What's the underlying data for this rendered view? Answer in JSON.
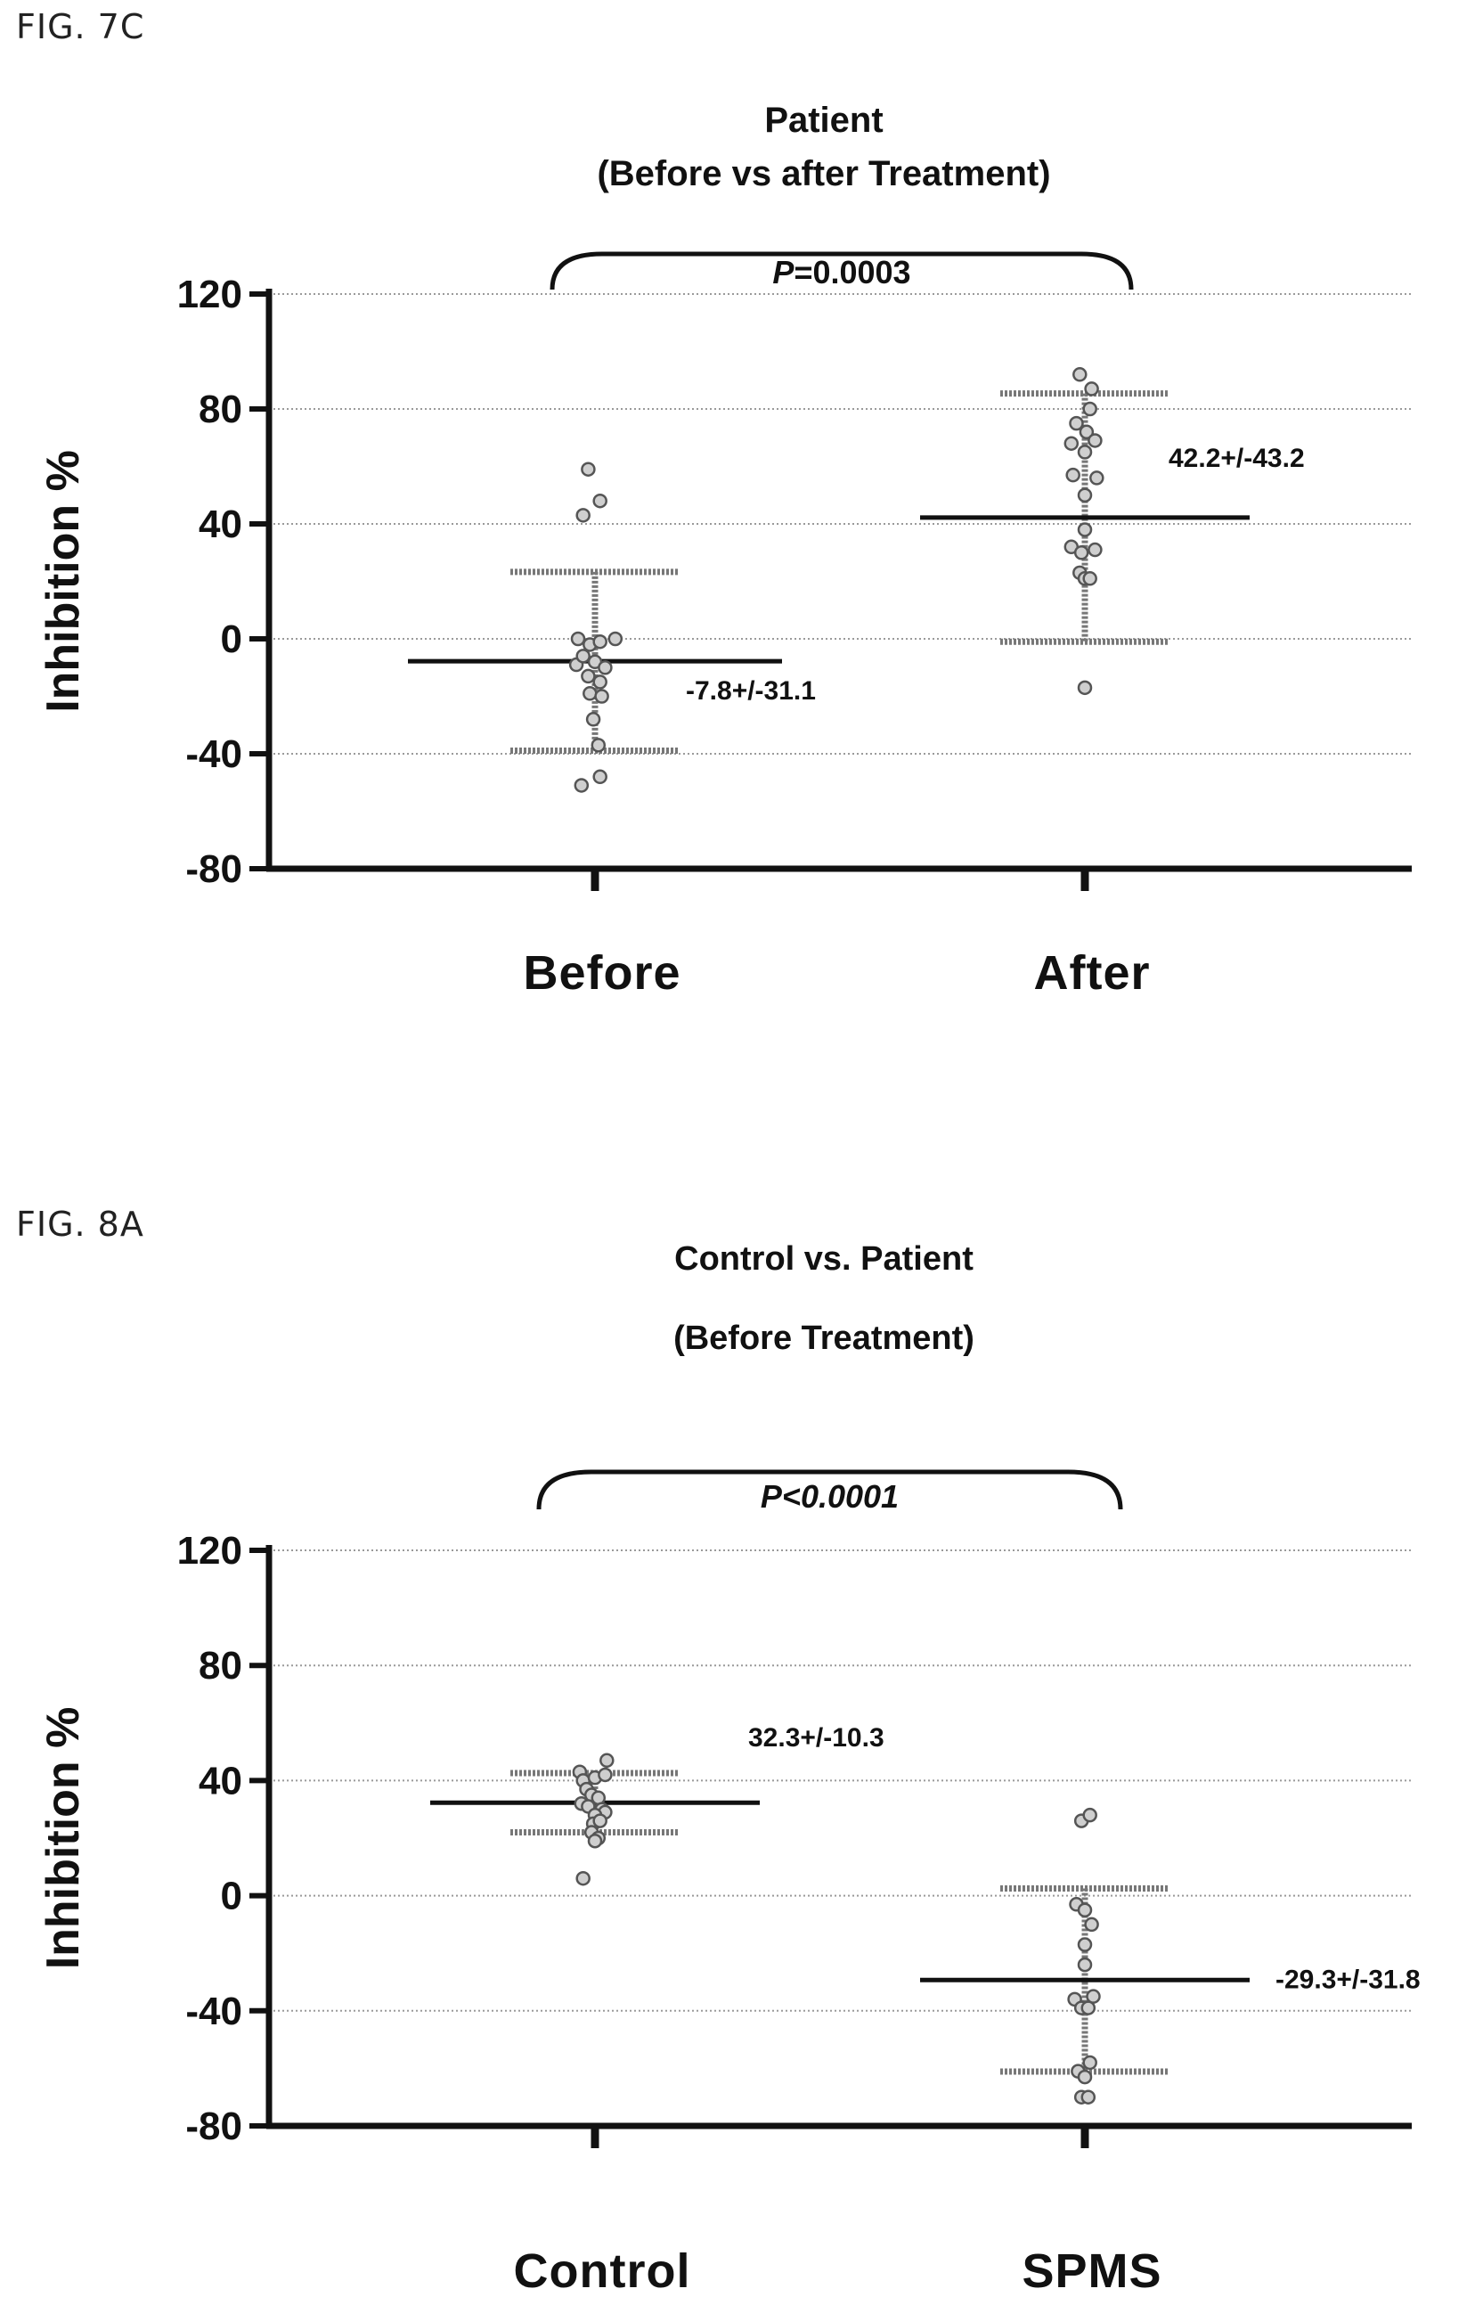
{
  "figures": [
    {
      "label": "FIG. 7C"
    },
    {
      "label": "FIG. 8A"
    }
  ],
  "chart_data": [
    {
      "type": "scatter",
      "title": "Patient",
      "subtitle": "(Before vs after Treatment)",
      "ylabel": "Inhibition %",
      "ylim": [
        -80,
        120
      ],
      "yticks": [
        "120",
        "80",
        "40",
        "0",
        "-40",
        "-80"
      ],
      "grid": true,
      "categories": [
        "Before",
        "After"
      ],
      "pvalue_prefix": "P",
      "pvalue_rest": "=0.0003",
      "groups": [
        {
          "name": "Before",
          "mean": -7.8,
          "sd": 31.1,
          "annotation": "-7.8+/-31.1",
          "points": [
            {
              "dx": -0.04,
              "y": 59
            },
            {
              "dx": -0.07,
              "y": 43
            },
            {
              "dx": 0.03,
              "y": 48
            },
            {
              "dx": -0.1,
              "y": 0
            },
            {
              "dx": -0.03,
              "y": -2
            },
            {
              "dx": 0.03,
              "y": -1
            },
            {
              "dx": 0.12,
              "y": 0
            },
            {
              "dx": -0.11,
              "y": -9
            },
            {
              "dx": -0.07,
              "y": -6
            },
            {
              "dx": 0.0,
              "y": -8
            },
            {
              "dx": 0.06,
              "y": -10
            },
            {
              "dx": -0.04,
              "y": -13
            },
            {
              "dx": 0.03,
              "y": -15
            },
            {
              "dx": -0.03,
              "y": -19
            },
            {
              "dx": 0.04,
              "y": -20
            },
            {
              "dx": -0.01,
              "y": -28
            },
            {
              "dx": 0.02,
              "y": -37
            },
            {
              "dx": -0.08,
              "y": -51
            },
            {
              "dx": 0.03,
              "y": -48
            }
          ]
        },
        {
          "name": "After",
          "mean": 42.2,
          "sd": 43.2,
          "annotation": "42.2+/-43.2",
          "points": [
            {
              "dx": -0.03,
              "y": 92
            },
            {
              "dx": 0.04,
              "y": 87
            },
            {
              "dx": 0.03,
              "y": 80
            },
            {
              "dx": -0.05,
              "y": 75
            },
            {
              "dx": 0.01,
              "y": 72
            },
            {
              "dx": -0.08,
              "y": 68
            },
            {
              "dx": 0.06,
              "y": 69
            },
            {
              "dx": 0.0,
              "y": 65
            },
            {
              "dx": -0.07,
              "y": 57
            },
            {
              "dx": 0.07,
              "y": 56
            },
            {
              "dx": 0.0,
              "y": 50
            },
            {
              "dx": 0.0,
              "y": 38
            },
            {
              "dx": -0.08,
              "y": 32
            },
            {
              "dx": 0.06,
              "y": 31
            },
            {
              "dx": -0.02,
              "y": 30
            },
            {
              "dx": -0.03,
              "y": 23
            },
            {
              "dx": 0.0,
              "y": 21
            },
            {
              "dx": 0.03,
              "y": 21
            },
            {
              "dx": 0.0,
              "y": -17
            }
          ]
        }
      ]
    },
    {
      "type": "scatter",
      "title": "Control vs. Patient",
      "subtitle": "(Before Treatment)",
      "ylabel": "Inhibition %",
      "ylim": [
        -80,
        120
      ],
      "yticks": [
        "120",
        "80",
        "40",
        "0",
        "-40",
        "-80"
      ],
      "grid": true,
      "categories": [
        "Control",
        "SPMS"
      ],
      "pvalue_prefix": "",
      "pvalue_rest": "P<0.0001",
      "groups": [
        {
          "name": "Control",
          "mean": 32.3,
          "sd": 10.3,
          "annotation": "32.3+/-10.3",
          "points": [
            {
              "dx": 0.07,
              "y": 47
            },
            {
              "dx": -0.09,
              "y": 43
            },
            {
              "dx": -0.07,
              "y": 40
            },
            {
              "dx": 0.0,
              "y": 41
            },
            {
              "dx": 0.06,
              "y": 42
            },
            {
              "dx": -0.05,
              "y": 37
            },
            {
              "dx": -0.02,
              "y": 35
            },
            {
              "dx": 0.02,
              "y": 34
            },
            {
              "dx": -0.08,
              "y": 32
            },
            {
              "dx": 0.04,
              "y": 30
            },
            {
              "dx": 0.06,
              "y": 29
            },
            {
              "dx": -0.04,
              "y": 31
            },
            {
              "dx": 0.0,
              "y": 28
            },
            {
              "dx": -0.01,
              "y": 25
            },
            {
              "dx": 0.03,
              "y": 26
            },
            {
              "dx": -0.02,
              "y": 22
            },
            {
              "dx": 0.02,
              "y": 20
            },
            {
              "dx": 0.0,
              "y": 19
            },
            {
              "dx": -0.07,
              "y": 6
            }
          ]
        },
        {
          "name": "SPMS",
          "mean": -29.3,
          "sd": 31.8,
          "annotation": "-29.3+/-31.8",
          "points": [
            {
              "dx": -0.02,
              "y": 26
            },
            {
              "dx": 0.03,
              "y": 28
            },
            {
              "dx": -0.05,
              "y": -3
            },
            {
              "dx": 0.0,
              "y": -5
            },
            {
              "dx": 0.04,
              "y": -10
            },
            {
              "dx": 0.0,
              "y": -17
            },
            {
              "dx": 0.0,
              "y": -24
            },
            {
              "dx": -0.06,
              "y": -36
            },
            {
              "dx": -0.02,
              "y": -39
            },
            {
              "dx": 0.02,
              "y": -39
            },
            {
              "dx": 0.05,
              "y": -35
            },
            {
              "dx": -0.04,
              "y": -61
            },
            {
              "dx": 0.0,
              "y": -63
            },
            {
              "dx": 0.03,
              "y": -58
            },
            {
              "dx": -0.02,
              "y": -70
            },
            {
              "dx": 0.02,
              "y": -70
            }
          ]
        }
      ]
    }
  ]
}
